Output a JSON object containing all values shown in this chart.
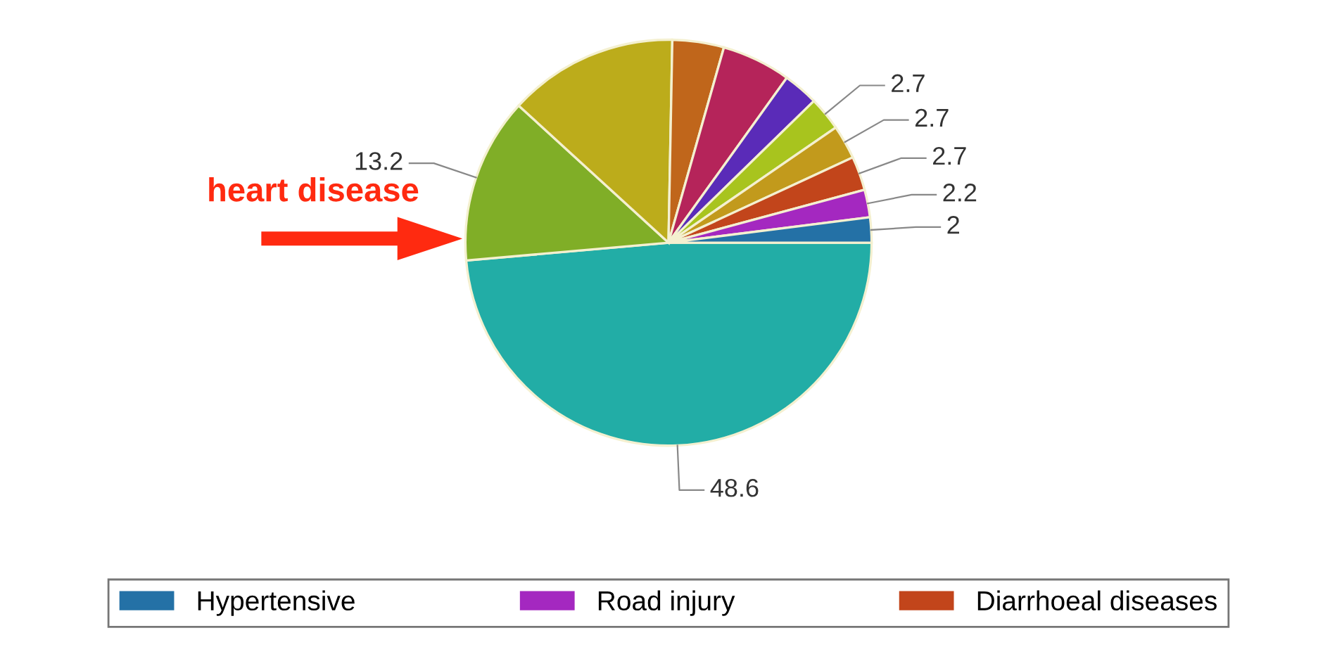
{
  "chart_data": {
    "type": "pie",
    "categories": [
      null,
      null,
      null,
      null,
      null,
      null,
      null,
      null,
      "Diarrhoeal diseases",
      "Road injury",
      "Hypertensive"
    ],
    "values": [
      48.6,
      13.2,
      13.5,
      4.1,
      5.5,
      2.8,
      2.7,
      2.7,
      2.7,
      2.2,
      2
    ],
    "value_labels": [
      "48.6",
      "13.2",
      null,
      null,
      null,
      null,
      "2.7",
      "2.7",
      "2.7",
      "2.2",
      "2"
    ],
    "colors": [
      "#22ada6",
      "#80ae27",
      "#bcac1b",
      "#c0661b",
      "#b5245a",
      "#5a2bb8",
      "#a8c41e",
      "#c29a1c",
      "#c2451b",
      "#a428c0",
      "#2471a6"
    ],
    "annotations": [
      "heart disease"
    ],
    "legend": "bottom"
  }
}
